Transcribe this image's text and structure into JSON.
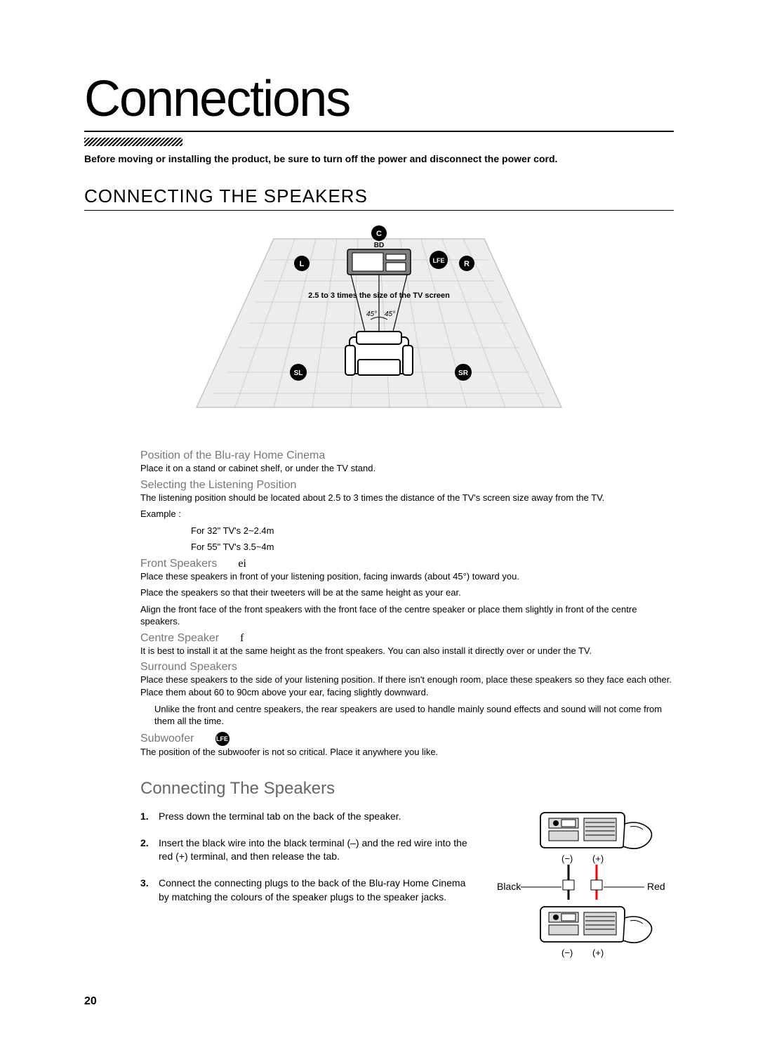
{
  "chapter_title": "Connections",
  "intro": "Before moving or installing the product, be sure to turn off the power and disconnect the power cord.",
  "section_header": "CONNECTING THE SPEAKERS",
  "diagram": {
    "labels": {
      "L": "L",
      "R": "R",
      "C": "C",
      "LFE": "LFE",
      "SL": "SL",
      "SR": "SR",
      "BD": "BD"
    },
    "caption": "2.5 to 3 times the size of the TV screen",
    "angle_left": "45°",
    "angle_right": "45°",
    "colors": {
      "floor_fill": "#eceded",
      "floor_stroke": "#b9baba",
      "tv_fill": "#808080",
      "tv_stroke": "#000000",
      "seat_fill": "#ffffff",
      "seat_stroke": "#000000",
      "line": "#000000",
      "badge_bg": "#000000",
      "badge_fg": "#ffffff"
    }
  },
  "blocks": [
    {
      "heading": "Position of the Blu-ray Home Cinema",
      "lines": [
        "Place it on a stand or cabinet shelf, or under the TV stand."
      ]
    },
    {
      "heading": "Selecting the Listening Position",
      "lines": [
        "The listening position should be located about 2.5 to 3 times the distance of the TV's screen size away from the TV.",
        "Example :",
        "For 32\" TV's 2~2.4m",
        "For 55\" TV's 3.5~4m"
      ],
      "example_indent": true
    },
    {
      "heading": "Front Speakers",
      "icon": "ei",
      "lines": [
        "Place these speakers in front of your listening position, facing inwards (about 45°) toward you.",
        "Place the speakers so that their tweeters will be at the same height as your ear.",
        "Align the front face of the front speakers with the front face of the centre speaker or place them slightly in front of the centre speakers."
      ]
    },
    {
      "heading": "Centre Speaker",
      "icon": "f",
      "lines": [
        "It is best to install it at the same height as the front speakers. You can also install it directly over or under the TV."
      ]
    },
    {
      "heading": "Surround Speakers",
      "lines": [
        "Place these speakers to the side of your listening position. If there isn't enough room, place these speakers so they face each other. Place them about 60 to 90cm above your ear, facing slightly downward.",
        "Unlike the front and centre speakers, the rear speakers are used to handle mainly sound effects and sound will not come from them all the time."
      ],
      "note_indent_second": true
    },
    {
      "heading": "Subwoofer",
      "icon_badge": "LFE",
      "lines": [
        "The position of the subwoofer is not so critical. Place it anywhere you like."
      ]
    }
  ],
  "connecting_title": "Connecting The Speakers",
  "steps": [
    "Press down the terminal tab on the back of the speaker.",
    "Insert the black wire into the black terminal (–) and the red wire into the red (+) terminal, and then release the tab.",
    "Connect the connecting plugs to the back of the Blu-ray Home Cinema by matching the colours of the speaker plugs to the speaker jacks."
  ],
  "terminal": {
    "minus": "(−)",
    "plus": "(+)",
    "black": "Black",
    "red": "Red",
    "colors": {
      "border": "#000000",
      "panel": "#d9d9d9",
      "body": "#ffffff",
      "red_wire": "#ff0000",
      "finger": "#000000"
    }
  },
  "page_number": "20"
}
